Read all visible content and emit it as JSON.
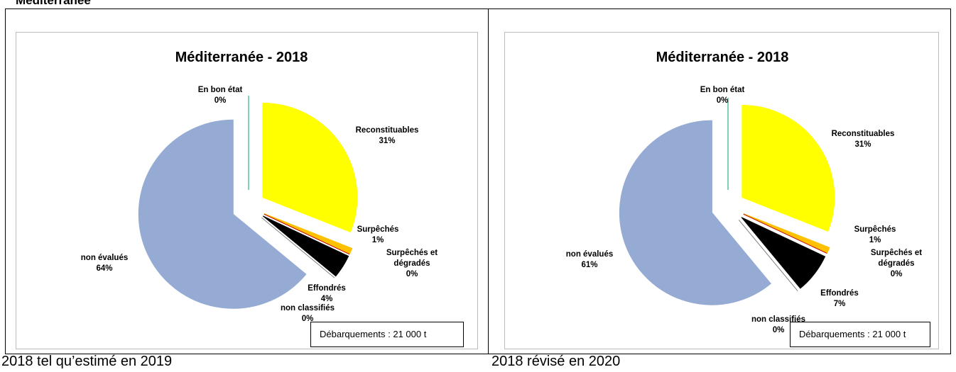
{
  "heading": "Méditerranée",
  "captions": [
    "2018 tel qu’estimé en 2019",
    "2018 révisé en 2020"
  ],
  "chart_data": [
    {
      "type": "pie",
      "title": "Méditerranée - 2018",
      "note": "Débarquements : 21 000 t",
      "categories": [
        "En bon état",
        "Reconstituables",
        "Surpêchés",
        "Surpêchés et dégradés",
        "Effondrés",
        "non classifiés",
        "non évalués"
      ],
      "values": [
        0,
        31,
        1,
        0,
        4,
        0,
        64
      ],
      "value_labels": [
        "0%",
        "31%",
        "1%",
        "0%",
        "4%",
        "0%",
        "64%"
      ],
      "colors": [
        "#00a070",
        "#ffff00",
        "#ffc000",
        "#c00000",
        "#000000",
        "#7f7f7f",
        "#95abd3"
      ]
    },
    {
      "type": "pie",
      "title": "Méditerranée - 2018",
      "note": "Débarquements : 21 000 t",
      "categories": [
        "En bon état",
        "Reconstituables",
        "Surpêchés",
        "Surpêchés et dégradés",
        "Effondrés",
        "non classifiés",
        "non évalués"
      ],
      "values": [
        0,
        31,
        1,
        0,
        7,
        0,
        61
      ],
      "value_labels": [
        "0%",
        "31%",
        "1%",
        "0%",
        "7%",
        "0%",
        "61%"
      ],
      "colors": [
        "#00a070",
        "#ffff00",
        "#ffc000",
        "#c00000",
        "#000000",
        "#7f7f7f",
        "#95abd3"
      ]
    }
  ]
}
